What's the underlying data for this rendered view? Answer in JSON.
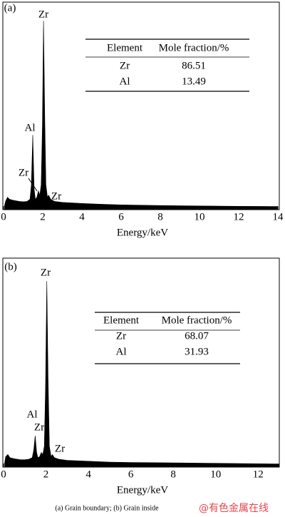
{
  "chart_data": [
    {
      "type": "area",
      "panel": "(a)",
      "xlabel": "Energy/keV",
      "color": "#000000",
      "x": [
        0.05,
        0.1,
        0.2,
        0.3,
        0.5,
        0.8,
        1.0,
        1.2,
        1.35,
        1.42,
        1.49,
        1.56,
        1.62,
        1.7,
        1.78,
        1.85,
        1.92,
        1.98,
        2.04,
        2.1,
        2.16,
        2.24,
        2.3,
        2.4,
        2.6,
        3.0,
        4.0,
        5.0,
        6.0,
        8.0,
        10.0,
        12.0,
        14.0
      ],
      "values": [
        2,
        4,
        6,
        5,
        4.5,
        4,
        3.8,
        4,
        5,
        12,
        36,
        10,
        5,
        6,
        9,
        7,
        12,
        40,
        91,
        45,
        12,
        6,
        7,
        5,
        4,
        3.5,
        3,
        2.6,
        2.3,
        2,
        1.8,
        1.6,
        1.5
      ],
      "xlim": [
        0,
        14
      ],
      "ylim": [
        0,
        100
      ],
      "xticks": [
        0,
        2,
        4,
        6,
        8,
        10,
        12,
        14
      ],
      "annotations": [
        "Zr",
        "Al",
        "Zr",
        "Zr"
      ],
      "table": {
        "columns": [
          "Element",
          "Mole fraction/%"
        ],
        "rows": [
          [
            "Zr",
            86.51
          ],
          [
            "Al",
            13.49
          ]
        ]
      }
    },
    {
      "type": "area",
      "panel": "(b)",
      "xlabel": "Energy/keV",
      "color": "#000000",
      "x": [
        0.05,
        0.1,
        0.2,
        0.3,
        0.5,
        0.8,
        1.0,
        1.2,
        1.35,
        1.42,
        1.49,
        1.56,
        1.62,
        1.7,
        1.78,
        1.85,
        1.92,
        1.98,
        2.04,
        2.1,
        2.16,
        2.24,
        2.3,
        2.4,
        2.6,
        3.0,
        4.0,
        5.0,
        6.0,
        8.0,
        10.0,
        12.0,
        13.0
      ],
      "values": [
        2,
        5,
        6,
        4.5,
        4,
        3.5,
        3.5,
        3.8,
        4.5,
        8,
        15,
        7,
        4.5,
        5,
        7,
        6,
        10,
        38,
        89,
        42,
        10,
        5,
        6,
        4.5,
        3.8,
        3.2,
        2.8,
        2.4,
        2.2,
        2,
        1.8,
        1.6,
        1.5
      ],
      "xlim": [
        0,
        13
      ],
      "ylim": [
        0,
        100
      ],
      "xticks": [
        0,
        2,
        4,
        6,
        8,
        10,
        12
      ],
      "annotations": [
        "Zr",
        "Al",
        "Zr",
        "Zr"
      ],
      "table": {
        "columns": [
          "Element",
          "Mole fraction/%"
        ],
        "rows": [
          [
            "Zr",
            68.07
          ],
          [
            "Al",
            31.93
          ]
        ]
      }
    }
  ],
  "caption": "(a) Grain boundary; (b) Grain inside",
  "watermark": "@有色金属在线"
}
